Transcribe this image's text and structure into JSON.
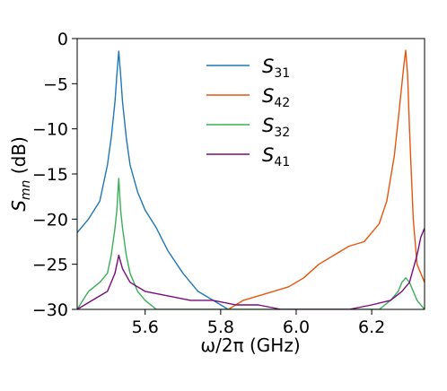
{
  "chart_data": {
    "type": "line",
    "title": "",
    "xlabel": "ω/2π (GHz)",
    "ylabel": "S_mn (dB)",
    "xlim": [
      5.42,
      6.34
    ],
    "ylim": [
      -30,
      0
    ],
    "xticks": [
      5.6,
      5.8,
      6.0,
      6.2
    ],
    "xtick_labels": [
      "5.6",
      "5.8",
      "6.0",
      "6.2"
    ],
    "yticks": [
      0,
      -5,
      -10,
      -15,
      -20,
      -25,
      -30
    ],
    "ytick_labels": [
      "0",
      "−5",
      "−10",
      "−15",
      "−20",
      "−25",
      "−30"
    ],
    "grid": false,
    "legend_position": "top-center",
    "series": [
      {
        "name": "S31",
        "label_main": "S",
        "label_sub": "31",
        "color": "#1f77b4",
        "x": [
          5.42,
          5.45,
          5.48,
          5.5,
          5.51,
          5.52,
          5.525,
          5.53,
          5.535,
          5.54,
          5.55,
          5.56,
          5.58,
          5.6,
          5.63,
          5.66,
          5.7,
          5.74,
          5.78,
          5.82
        ],
        "y": [
          -21.5,
          -20,
          -18,
          -14,
          -11,
          -7,
          -4,
          -1.4,
          -4,
          -7,
          -11,
          -14,
          -17,
          -19,
          -21,
          -23.5,
          -26,
          -28,
          -29,
          -30
        ]
      },
      {
        "name": "S42",
        "label_main": "S",
        "label_sub": "42",
        "color": "#e6550d",
        "x": [
          5.82,
          5.86,
          5.9,
          5.94,
          5.98,
          6.02,
          6.06,
          6.1,
          6.14,
          6.18,
          6.22,
          6.24,
          6.26,
          6.27,
          6.28,
          6.285,
          6.29,
          6.295,
          6.3,
          6.31,
          6.32,
          6.34
        ],
        "y": [
          -30,
          -29,
          -28.5,
          -28,
          -27.5,
          -26.5,
          -25,
          -24,
          -23,
          -22.5,
          -20.5,
          -18,
          -13,
          -9,
          -5,
          -3,
          -1.3,
          -4,
          -10,
          -20,
          -25,
          -27
        ]
      },
      {
        "name": "S32",
        "label_main": "S",
        "label_sub": "32",
        "color": "#3cae57",
        "x": [
          5.42,
          5.45,
          5.48,
          5.5,
          5.51,
          5.52,
          5.525,
          5.53,
          5.535,
          5.54,
          5.55,
          5.56,
          5.58,
          5.6,
          5.63,
          5.66,
          5.7,
          6.22,
          6.25,
          6.27,
          6.28,
          6.29,
          6.3,
          6.32,
          6.34
        ],
        "y": [
          -30,
          -28,
          -27,
          -26,
          -24,
          -21,
          -19,
          -15.5,
          -19,
          -21,
          -24,
          -26,
          -28,
          -29,
          -30,
          -30,
          -30,
          -30,
          -29,
          -28,
          -27,
          -26.5,
          -27,
          -29,
          -30
        ]
      },
      {
        "name": "S41",
        "label_main": "S",
        "label_sub": "41",
        "color": "#7a0c7a",
        "x": [
          5.42,
          5.46,
          5.5,
          5.52,
          5.53,
          5.54,
          5.56,
          5.6,
          5.66,
          5.72,
          5.78,
          5.84,
          5.9,
          5.96,
          6.02,
          6.08,
          6.14,
          6.2,
          6.25,
          6.28,
          6.3,
          6.32,
          6.33,
          6.34
        ],
        "y": [
          -30,
          -29,
          -28,
          -26,
          -24,
          -25.5,
          -27,
          -28,
          -28.5,
          -29,
          -29,
          -29.5,
          -29.5,
          -30,
          -30,
          -30,
          -30,
          -29.5,
          -29,
          -28,
          -27,
          -24,
          -22,
          -21
        ]
      }
    ]
  }
}
